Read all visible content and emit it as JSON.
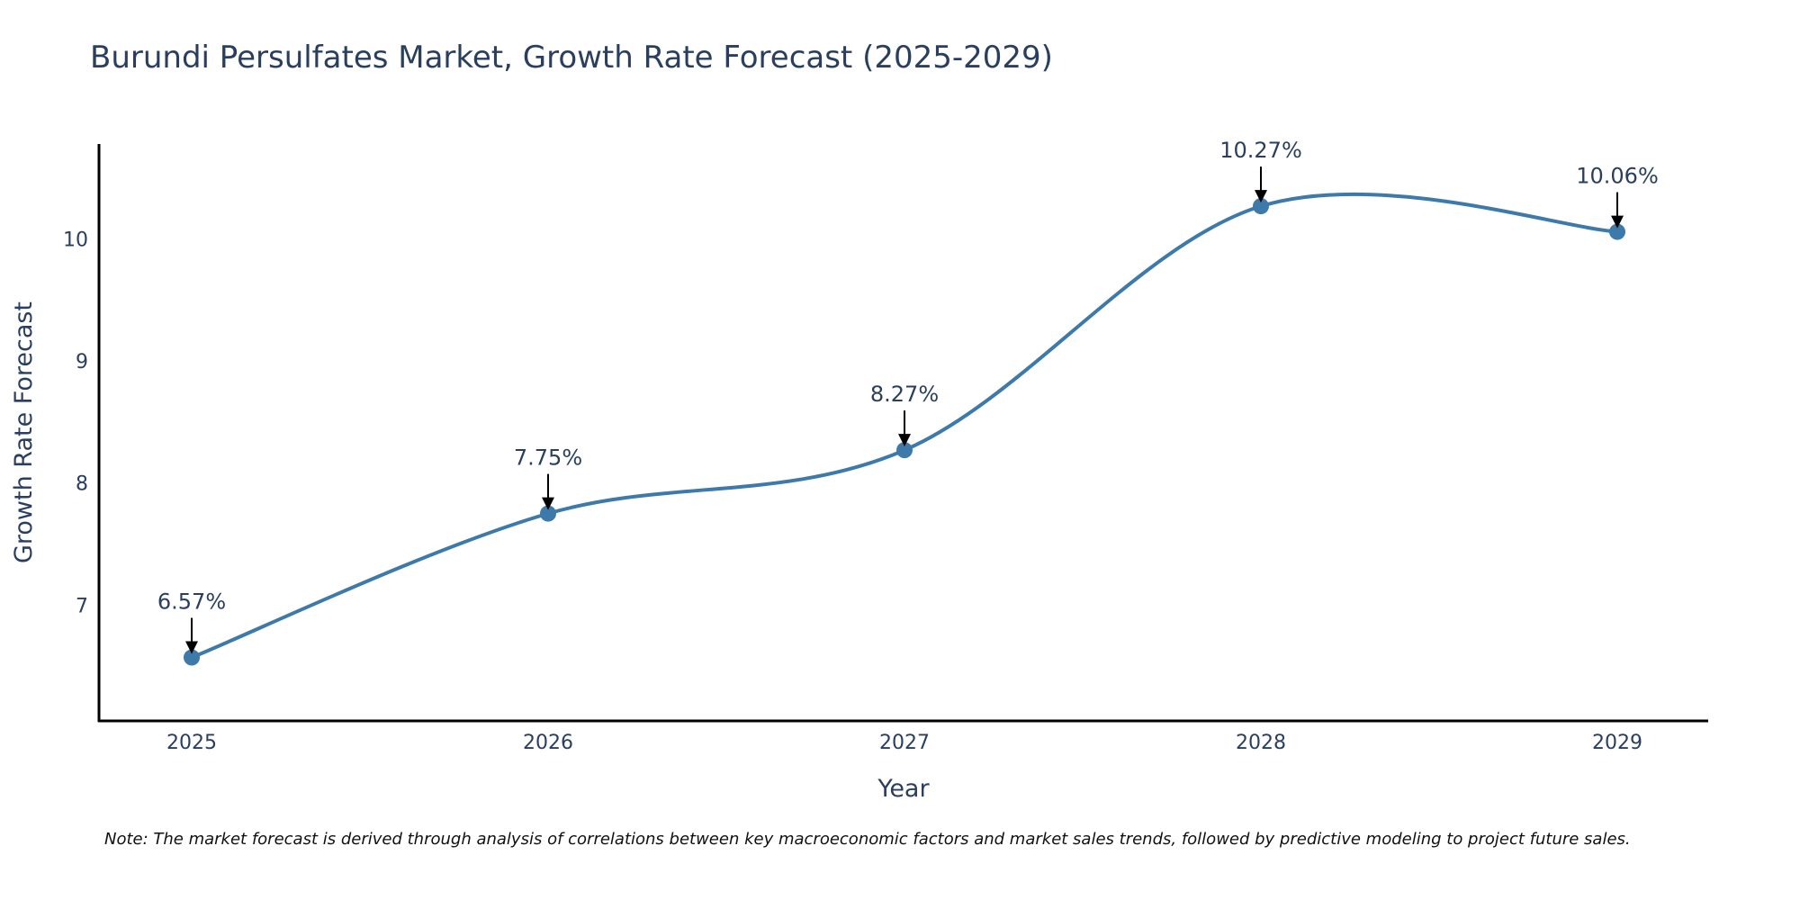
{
  "chart_data": {
    "type": "line",
    "title": "Burundi Persulfates Market, Growth Rate Forecast (2025-2029)",
    "xlabel": "Year",
    "ylabel": "Growth Rate Forecast",
    "categories": [
      "2025",
      "2026",
      "2027",
      "2028",
      "2029"
    ],
    "series": [
      {
        "name": "Growth Rate Forecast",
        "values": [
          6.57,
          7.75,
          8.27,
          10.27,
          10.06
        ]
      }
    ],
    "data_labels": [
      "6.57%",
      "7.75%",
      "8.27%",
      "10.27%",
      "10.06%"
    ],
    "yticks": [
      7,
      8,
      9,
      10
    ],
    "ylim": [
      6.05,
      10.78
    ],
    "grid": false,
    "line_color": "#3d7aa9",
    "note": "Note: The market forecast is derived through analysis of correlations between key macroeconomic factors and market sales trends, followed by predictive modeling to project future sales."
  }
}
